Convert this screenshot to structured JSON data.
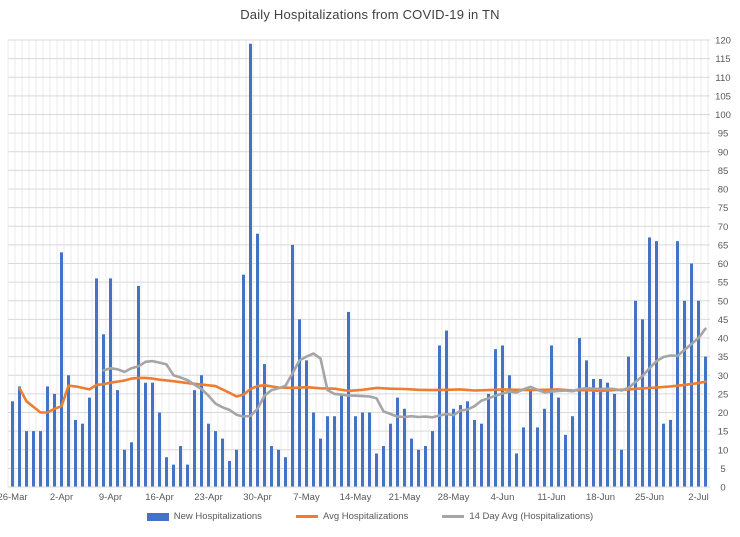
{
  "page": {
    "background": "#ffffff"
  },
  "chart_data": {
    "type": "combo",
    "title": "Daily Hospitalizations from COVID-19 in TN",
    "legend_position": "bottom",
    "grid": true,
    "ylim": [
      0,
      120
    ],
    "y_tick_step": 5,
    "y_axis_side": "right",
    "x_tick_interval": 7,
    "x_tick_labels": [
      "26-Mar",
      "2-Apr",
      "9-Apr",
      "16-Apr",
      "23-Apr",
      "30-Apr",
      "7-May",
      "14-May",
      "21-May",
      "28-May",
      "4-Jun",
      "11-Jun",
      "18-Jun",
      "25-Jun",
      "2-Jul"
    ],
    "colors": {
      "bar": "#4472C4",
      "avg_line": "#ED7D31",
      "avg14_line": "#A5A5A5",
      "gridline": "#D9D9D9",
      "day_gridline": "#EBEBEB",
      "axis_text": "#595959",
      "title_text": "#404040"
    },
    "series": [
      {
        "name": "New Hospitalizations",
        "type": "bar",
        "color": "#4472C4",
        "values": [
          23,
          27,
          15,
          15,
          15,
          27,
          25,
          63,
          30,
          18,
          17,
          24,
          56,
          41,
          56,
          26,
          10,
          12,
          54,
          28,
          28,
          20,
          8,
          6,
          11,
          6,
          26,
          30,
          17,
          15,
          13,
          7,
          10,
          57,
          119,
          68,
          33,
          11,
          10,
          8,
          65,
          45,
          34,
          20,
          13,
          19,
          19,
          25,
          47,
          19,
          20,
          20,
          9,
          11,
          17,
          24,
          21,
          13,
          10,
          11,
          15,
          38,
          42,
          21,
          22,
          23,
          18,
          17,
          25,
          37,
          38,
          30,
          9,
          16,
          26,
          16,
          21,
          38,
          24,
          14,
          19,
          40,
          34,
          29,
          29,
          28,
          25,
          10,
          35,
          50,
          45,
          67,
          66,
          17,
          18,
          66,
          50,
          60,
          50,
          35
        ]
      },
      {
        "name": "Avg Hospitalizations",
        "type": "line",
        "color": "#ED7D31",
        "points": [
          [
            1,
            26.5
          ],
          [
            2,
            23
          ],
          [
            3,
            21.5
          ],
          [
            4,
            20
          ],
          [
            5,
            20
          ],
          [
            6,
            21
          ],
          [
            7,
            21.7
          ],
          [
            8,
            27.2
          ],
          [
            9,
            27.0
          ],
          [
            10,
            26.6
          ],
          [
            11,
            26.2
          ],
          [
            12,
            27.4
          ],
          [
            13,
            27.6
          ],
          [
            14,
            28.0
          ],
          [
            15,
            28.3
          ],
          [
            16,
            28.6
          ],
          [
            17,
            29.1
          ],
          [
            18,
            29.3
          ],
          [
            19,
            29.3
          ],
          [
            20,
            29.1
          ],
          [
            21,
            28.8
          ],
          [
            23,
            28.4
          ],
          [
            25,
            27.9
          ],
          [
            27,
            27.5
          ],
          [
            29,
            27.1
          ],
          [
            31,
            25.3
          ],
          [
            32,
            24.3
          ],
          [
            33,
            24.8
          ],
          [
            34,
            26.3
          ],
          [
            35,
            27.1
          ],
          [
            36,
            27.3
          ],
          [
            38,
            26.7
          ],
          [
            40,
            26.6
          ],
          [
            42,
            26.8
          ],
          [
            44,
            26.5
          ],
          [
            46,
            26.4
          ],
          [
            48,
            25.8
          ],
          [
            50,
            26.1
          ],
          [
            52,
            26.6
          ],
          [
            54,
            26.4
          ],
          [
            56,
            26.3
          ],
          [
            58,
            26.1
          ],
          [
            60,
            26.0
          ],
          [
            62,
            26.1
          ],
          [
            64,
            26.2
          ],
          [
            66,
            25.9
          ],
          [
            68,
            26.0
          ],
          [
            70,
            26.2
          ],
          [
            72,
            26.1
          ],
          [
            74,
            26.0
          ],
          [
            76,
            26.1
          ],
          [
            78,
            26.2
          ],
          [
            80,
            25.9
          ],
          [
            82,
            26.0
          ],
          [
            84,
            25.8
          ],
          [
            86,
            26.0
          ],
          [
            88,
            26.2
          ],
          [
            90,
            26.5
          ],
          [
            92,
            26.7
          ],
          [
            94,
            27.0
          ],
          [
            96,
            27.4
          ],
          [
            98,
            27.9
          ],
          [
            99,
            28.3
          ]
        ]
      },
      {
        "name": "14 Day Avg (Hospitalizations)",
        "type": "line",
        "color": "#A5A5A5",
        "points": [
          [
            13,
            31.3
          ],
          [
            14,
            31.9
          ],
          [
            15,
            31.6
          ],
          [
            16,
            30.9
          ],
          [
            17,
            31.9
          ],
          [
            18,
            32.4
          ],
          [
            19,
            33.6
          ],
          [
            20,
            33.8
          ],
          [
            21,
            33.4
          ],
          [
            22,
            32.9
          ],
          [
            23,
            30.0
          ],
          [
            24,
            29.4
          ],
          [
            25,
            28.7
          ],
          [
            26,
            27.5
          ],
          [
            27,
            26.3
          ],
          [
            28,
            24.5
          ],
          [
            29,
            22.4
          ],
          [
            30,
            21.4
          ],
          [
            31,
            20.7
          ],
          [
            32,
            19.4
          ],
          [
            33,
            18.9
          ],
          [
            34,
            19.1
          ],
          [
            35,
            21.0
          ],
          [
            36,
            24.5
          ],
          [
            37,
            26.0
          ],
          [
            38,
            26.5
          ],
          [
            39,
            27.2
          ],
          [
            40,
            30.5
          ],
          [
            41,
            34.0
          ],
          [
            42,
            35.0
          ],
          [
            43,
            35.8
          ],
          [
            44,
            34.5
          ],
          [
            45,
            26.0
          ],
          [
            46,
            25.0
          ],
          [
            47,
            24.8
          ],
          [
            48,
            24.6
          ],
          [
            49,
            24.5
          ],
          [
            50,
            24.4
          ],
          [
            51,
            24.3
          ],
          [
            52,
            23.8
          ],
          [
            53,
            20.3
          ],
          [
            54,
            19.6
          ],
          [
            55,
            18.9
          ],
          [
            56,
            18.8
          ],
          [
            57,
            19.0
          ],
          [
            58,
            18.8
          ],
          [
            59,
            18.9
          ],
          [
            60,
            18.7
          ],
          [
            61,
            19.2
          ],
          [
            62,
            19.6
          ],
          [
            63,
            19.3
          ],
          [
            64,
            20.5
          ],
          [
            65,
            20.8
          ],
          [
            66,
            21.7
          ],
          [
            67,
            23.2
          ],
          [
            68,
            23.8
          ],
          [
            69,
            24.5
          ],
          [
            70,
            25.1
          ],
          [
            71,
            25.6
          ],
          [
            72,
            25.4
          ],
          [
            73,
            26.2
          ],
          [
            74,
            26.9
          ],
          [
            75,
            26.1
          ],
          [
            76,
            25.4
          ],
          [
            77,
            25.6
          ],
          [
            78,
            25.8
          ],
          [
            79,
            25.9
          ],
          [
            80,
            25.7
          ],
          [
            81,
            26.3
          ],
          [
            82,
            26.5
          ],
          [
            83,
            26.4
          ],
          [
            84,
            26.3
          ],
          [
            85,
            26.4
          ],
          [
            86,
            26.3
          ],
          [
            87,
            25.9
          ],
          [
            88,
            26.6
          ],
          [
            89,
            28.2
          ],
          [
            90,
            29.8
          ],
          [
            91,
            31.9
          ],
          [
            92,
            33.8
          ],
          [
            93,
            34.9
          ],
          [
            94,
            35.3
          ],
          [
            95,
            35.2
          ],
          [
            96,
            36.8
          ],
          [
            97,
            38.4
          ],
          [
            98,
            40.0
          ],
          [
            99,
            42.5
          ]
        ]
      }
    ]
  }
}
